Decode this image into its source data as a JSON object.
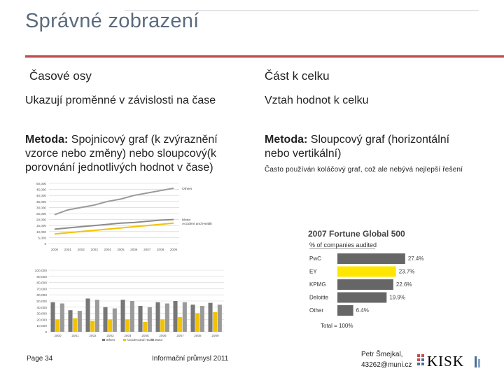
{
  "slide": {
    "title": "Správné zobrazení",
    "left_header": "Časové osy",
    "right_header": "Část k celku",
    "left_desc": "Ukazují proměnné v závislosti na čase",
    "right_desc": "Vztah hodnot k celku",
    "left_method_label": "Metoda:",
    "left_method_text": " Spojnicový graf (k zvýraznění",
    "left_method_line2": "vzorce nebo změny) nebo sloupcový(k",
    "left_method_line3": "porovnání jednotlivých hodnot v čase)",
    "right_method_label": "Metoda:",
    "right_method_text": " Sloupcový graf (horizontální",
    "right_method_line2": "nebo vertikální)",
    "right_note": "Často používán koláčový graf, což ale nebývá nejlepší řešení"
  },
  "footer": {
    "page": "Page 34",
    "course": "Informační průmysl 2011",
    "author_line1": "Petr Šmejkal,",
    "author_line2": "43262@muni.cz",
    "logo_text": "KISK"
  },
  "chart_data": [
    {
      "type": "line",
      "x": [
        "2000",
        "2001",
        "2002",
        "2003",
        "2004",
        "2005",
        "2006",
        "2007",
        "2008",
        "2009"
      ],
      "yticks": [
        "0",
        "5,000",
        "10,000",
        "15,000",
        "20,000",
        "25,000",
        "30,000",
        "35,000",
        "40,000",
        "45,000",
        "50,000"
      ],
      "ylim": [
        0,
        50000
      ],
      "series": [
        {
          "name": "Others",
          "values": [
            24000,
            28000,
            30000,
            32000,
            35000,
            37000,
            40000,
            42000,
            44000,
            46000
          ],
          "color": "#9a9a9a"
        },
        {
          "name": "Motor",
          "values": [
            12000,
            13000,
            14000,
            15000,
            16000,
            17000,
            17500,
            18500,
            19500,
            20000
          ],
          "color": "#8a8a8a"
        },
        {
          "name": "Accident and Health",
          "values": [
            8000,
            9000,
            10000,
            11000,
            12000,
            13000,
            14000,
            15000,
            16000,
            17000
          ],
          "color": "#f2c300"
        }
      ]
    },
    {
      "type": "bar",
      "x": [
        "2000",
        "2001",
        "2002",
        "2003",
        "2004",
        "2005",
        "2006",
        "2007",
        "2008",
        "2009"
      ],
      "yticks": [
        "0",
        "10,000",
        "20,000",
        "30,000",
        "40,000",
        "50,000",
        "60,000",
        "70,000",
        "80,000",
        "90,000",
        "100,000"
      ],
      "ylim": [
        0,
        100000
      ],
      "legend": [
        "Others",
        "Accident and Health",
        "Motor"
      ],
      "series": [
        {
          "name": "Others",
          "values": [
            48000,
            35000,
            54000,
            40000,
            52000,
            42000,
            48000,
            50000,
            44000,
            47000
          ],
          "color": "#777777"
        },
        {
          "name": "Accident and Health",
          "values": [
            20000,
            22000,
            18000,
            20000,
            20000,
            16000,
            20000,
            24000,
            30000,
            32000
          ],
          "color": "#f2c300"
        },
        {
          "name": "Motor",
          "values": [
            46000,
            34000,
            52000,
            38000,
            50000,
            40000,
            46000,
            48000,
            42000,
            44000
          ],
          "color": "#9a9a9a"
        }
      ]
    },
    {
      "type": "bar",
      "orientation": "horizontal",
      "title": "2007 Fortune Global 500",
      "subtitle": "% of companies audited",
      "categories": [
        "PwC",
        "EY",
        "KPMG",
        "Deloitte",
        "Other"
      ],
      "values": [
        27.4,
        23.7,
        22.6,
        19.9,
        6.4
      ],
      "labels": [
        "27.4%",
        "23.7%",
        "22.6%",
        "19.9%",
        "6.4%"
      ],
      "highlight": "EY",
      "highlight_color": "#ffe600",
      "bar_color": "#666666",
      "total_label": "Total = 100%",
      "xlim": [
        0,
        30
      ]
    }
  ]
}
